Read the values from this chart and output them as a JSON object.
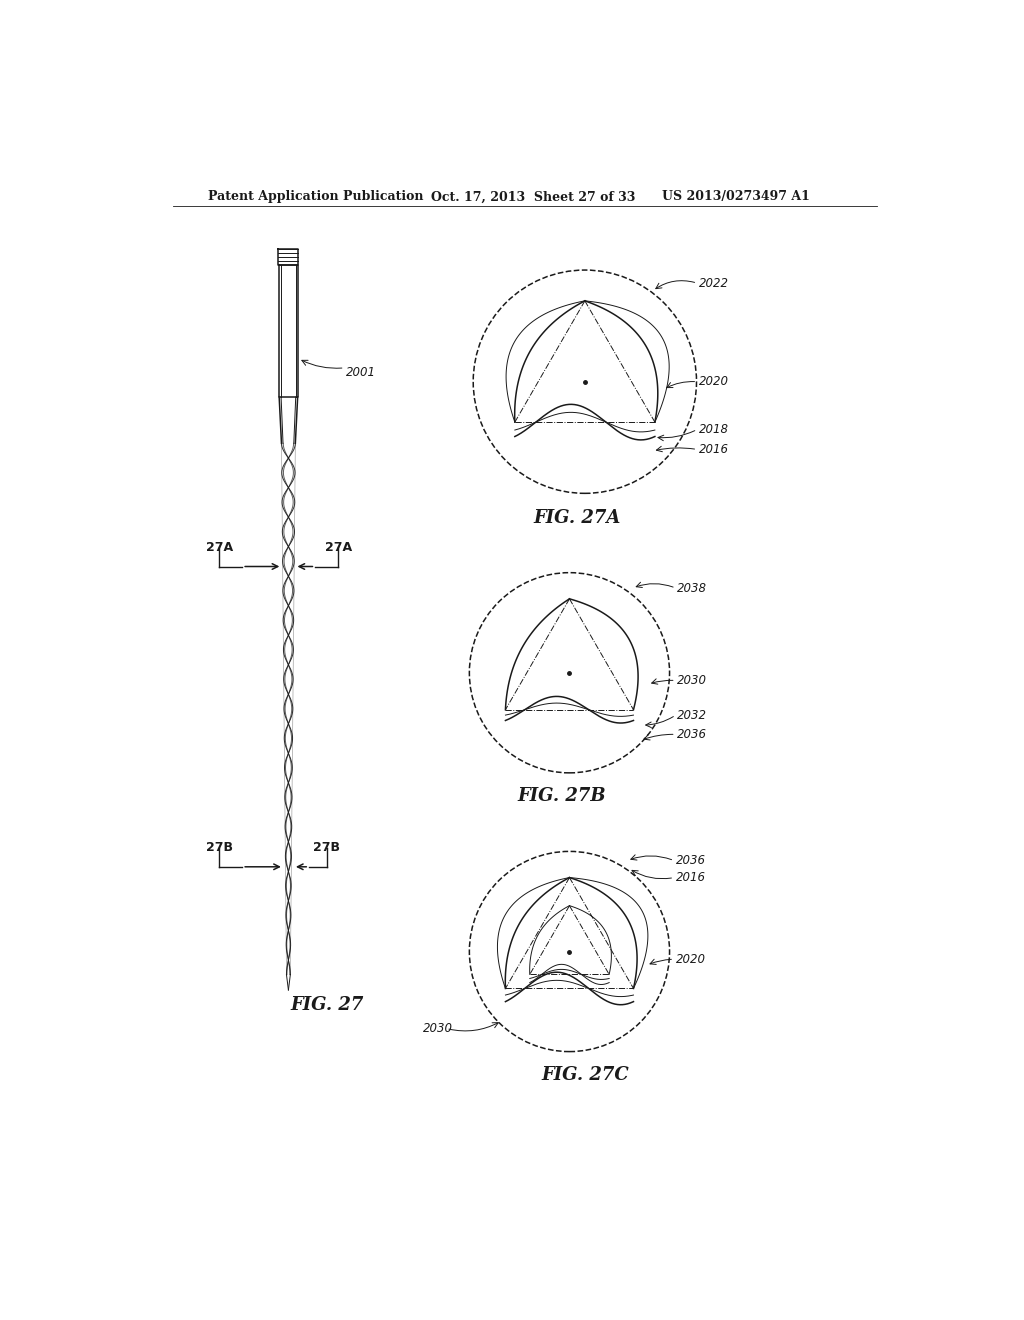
{
  "bg_color": "#ffffff",
  "line_color": "#1a1a1a",
  "header_text": "Patent Application Publication",
  "header_date": "Oct. 17, 2013  Sheet 27 of 33",
  "header_patent": "US 2013/0273497 A1",
  "fig27_label": "FIG. 27",
  "fig27a_label": "FIG. 27A",
  "fig27b_label": "FIG. 27B",
  "fig27c_label": "FIG. 27C"
}
